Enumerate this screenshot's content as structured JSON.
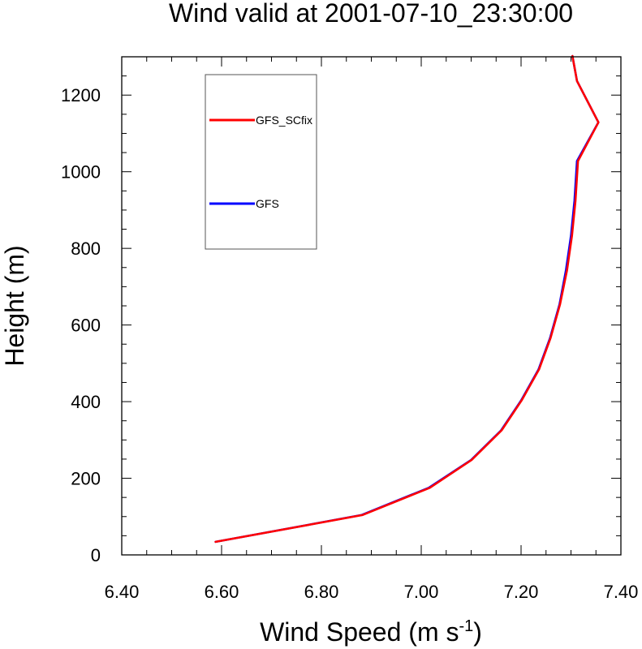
{
  "chart_data": {
    "type": "line",
    "title": "Wind valid at 2001-07-10_23:30:00",
    "xlabel": "Wind Speed (m s",
    "xlabel_sup": "-1",
    "xlabel_end": ")",
    "ylabel": "Height (m)",
    "xlim": [
      6.4,
      7.4
    ],
    "ylim": [
      0,
      1300
    ],
    "xticks": [
      6.4,
      6.6,
      6.8,
      7.0,
      7.2,
      7.4
    ],
    "xtick_labels": [
      "6.40",
      "6.60",
      "6.80",
      "7.00",
      "7.20",
      "7.40"
    ],
    "yticks": [
      0,
      200,
      400,
      600,
      800,
      1000,
      1200
    ],
    "ytick_labels": [
      "0",
      "200",
      "400",
      "600",
      "800",
      "1000",
      "1200"
    ],
    "x_minor_step": 0.05,
    "y_minor_step": 50,
    "legend_position": "top-left",
    "series": [
      {
        "name": "GFS",
        "color": "#0000ff",
        "x": [
          6.588,
          6.88,
          7.015,
          7.1,
          7.16,
          7.2,
          7.235,
          7.258,
          7.277,
          7.29,
          7.3,
          7.307,
          7.312,
          7.355,
          7.312,
          7.303
        ],
        "y": [
          34,
          104,
          175,
          248,
          325,
          403,
          484,
          566,
          654,
          743,
          833,
          924,
          1028,
          1129,
          1237,
          1302
        ]
      },
      {
        "name": "GFS_SCfix",
        "color": "#ff0000",
        "x": [
          6.588,
          6.882,
          7.017,
          7.101,
          7.161,
          7.201,
          7.236,
          7.259,
          7.278,
          7.292,
          7.302,
          7.309,
          7.314,
          7.355,
          7.312,
          7.303
        ],
        "y": [
          34,
          104,
          175,
          248,
          325,
          403,
          484,
          566,
          654,
          743,
          833,
          924,
          1028,
          1129,
          1237,
          1302
        ]
      }
    ],
    "legend": [
      {
        "label": "GFS_SCfix",
        "color": "#ff0000"
      },
      {
        "label": "GFS",
        "color": "#0000ff"
      }
    ]
  }
}
